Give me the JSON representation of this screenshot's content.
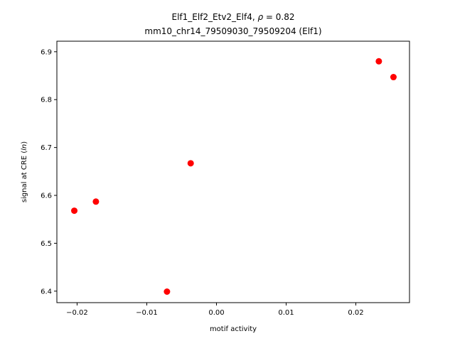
{
  "chart_data": {
    "type": "scatter",
    "title": "Elf1_Elf2_Etv2_Elf4, ρ = 0.82",
    "subtitle": "mm10_chr14_79509030_79509204 (Elf1)",
    "xlabel": "motif activity",
    "ylabel": "signal at CRE (ln)",
    "xlim": [
      -0.0229,
      0.0277
    ],
    "ylim": [
      6.376,
      6.922
    ],
    "xticks": [
      -0.02,
      -0.01,
      0.0,
      0.01,
      0.02
    ],
    "xtick_labels": [
      "−0.02",
      "−0.01",
      "0.00",
      "0.01",
      "0.02"
    ],
    "yticks": [
      6.4,
      6.5,
      6.6,
      6.7,
      6.8,
      6.9
    ],
    "ytick_labels": [
      "6.4",
      "6.5",
      "6.6",
      "6.7",
      "6.8",
      "6.9"
    ],
    "grid": false,
    "marker_color": "#ff0000",
    "points": [
      {
        "x": -0.0204,
        "y": 6.568
      },
      {
        "x": -0.0173,
        "y": 6.587
      },
      {
        "x": -0.0071,
        "y": 6.399
      },
      {
        "x": -0.0037,
        "y": 6.667
      },
      {
        "x": 0.0233,
        "y": 6.88
      },
      {
        "x": 0.0254,
        "y": 6.847
      }
    ]
  }
}
